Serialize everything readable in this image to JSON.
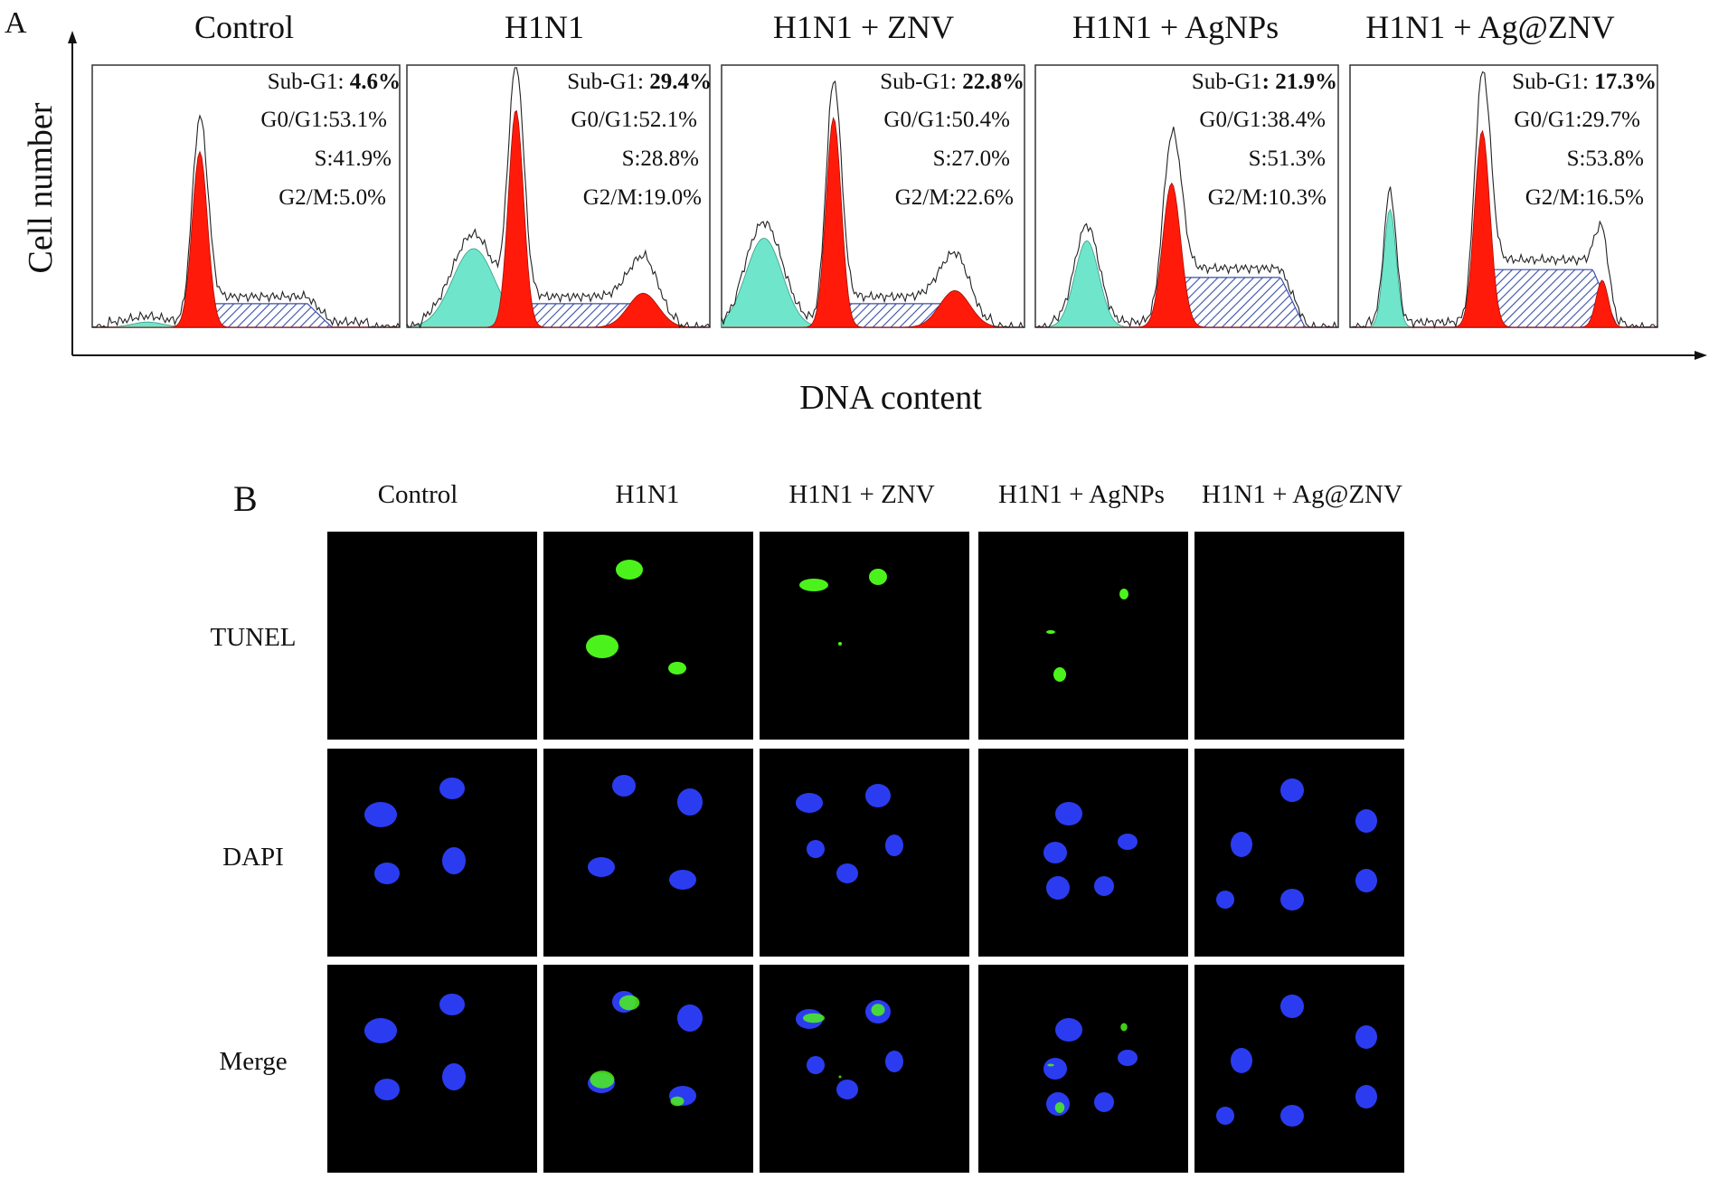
{
  "panel_a": {
    "letter": "A",
    "y_axis_label": "Cell  number",
    "x_axis_label": "DNA  content",
    "groups": [
      {
        "title": "Control",
        "sub_g1_label": "Sub-G1: ",
        "sub_g1": "4.6%",
        "g0g1": "G0/G1:53.1%",
        "s": "S:41.9%",
        "g2m": "G2/M:5.0%"
      },
      {
        "title": "H1N1",
        "sub_g1_label": "Sub-G1: ",
        "sub_g1": "29.4%",
        "g0g1": "G0/G1:52.1%",
        "s": "S:28.8%",
        "g2m": "G2/M:19.0%"
      },
      {
        "title": "H1N1 + ZNV",
        "sub_g1_label": "Sub-G1: ",
        "sub_g1": "22.8%",
        "g0g1": "G0/G1:50.4%",
        "s": "S:27.0%",
        "g2m": "G2/M:22.6%"
      },
      {
        "title": "H1N1 + AgNPs",
        "sub_g1_label": "Sub-G1",
        "sub_g1": ": 21.9%",
        "g0g1": "G0/G1:38.4%",
        "s": "S:51.3%",
        "g2m": "G2/M:10.3%"
      },
      {
        "title": "H1N1 + Ag@ZNV",
        "sub_g1_label": "Sub-G1: ",
        "sub_g1": "17.3%",
        "g0g1": "G0/G1:29.7%",
        "s": "S:53.8%",
        "g2m": "G2/M:16.5%"
      }
    ],
    "colors": {
      "sub_g1": "#6fe6cc",
      "g0g1": "#ff1a0a",
      "s_phase": "#3a4fa8"
    }
  },
  "panel_b": {
    "letter": "B",
    "columns": [
      "Control",
      "H1N1",
      "H1N1 + ZNV",
      "H1N1 + AgNPs",
      "H1N1 + Ag@ZNV"
    ],
    "rows": [
      "TUNEL",
      "DAPI",
      "Merge"
    ],
    "colors": {
      "tunel": "#4cf21c",
      "dapi": "#2b3cf0",
      "background": "#000000"
    }
  }
}
